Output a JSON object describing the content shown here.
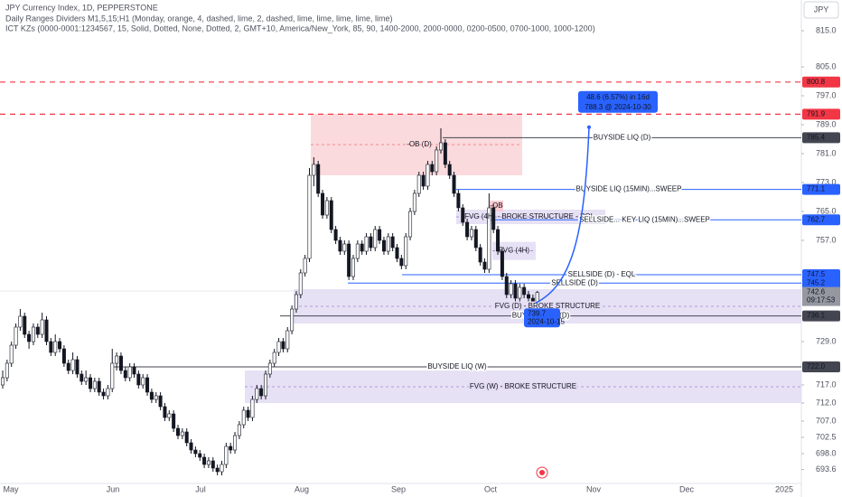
{
  "header": {
    "lines": [
      "JPY Currency Index, 1D, PEPPERSTONE",
      "Daily Ranges Dividers M1,5,15;H1 (Monday, orange, 4, dashed, lime, 2, dashed, lime, lime, lime, lime, lime)",
      "ICT KZs (0000-0001:1234567, 15, Solid, Dotted, None, Dotted, 2, GMT+10, America/New_York, 85, 90, 1400-2000, 2000-0000, 0200-0500, 0700-1000, 1000-1200)"
    ],
    "currency": "JPY"
  },
  "chart_data": {
    "type": "candlestick",
    "colors": {
      "up": "#ffffff",
      "down": "#131722",
      "wick": "#131722"
    },
    "ylim": [
      692,
      818
    ],
    "yticks": [
      {
        "value": 815,
        "label": "815.0"
      },
      {
        "value": 805,
        "label": "805.0"
      },
      {
        "value": 797,
        "label": "797.0"
      },
      {
        "value": 789,
        "label": "789.0"
      },
      {
        "value": 781,
        "label": "781.0"
      },
      {
        "value": 773,
        "label": "773.0"
      },
      {
        "value": 765,
        "label": "765.0"
      },
      {
        "value": 757,
        "label": "757.0"
      },
      {
        "value": 729,
        "label": "729.0"
      },
      {
        "value": 717,
        "label": "717.0"
      },
      {
        "value": 712,
        "label": "712.0"
      },
      {
        "value": 707,
        "label": "707.0"
      },
      702.5,
      {
        "value": 698,
        "label": "698.0"
      },
      693.6
    ],
    "xticks": [
      "May",
      "Jun",
      "Jul",
      "Aug",
      "Sep",
      "Oct",
      "Nov",
      "Dec",
      "2025"
    ],
    "ohlc": [
      [
        717,
        721,
        716,
        719
      ],
      [
        719,
        724,
        718,
        723
      ],
      [
        723,
        729,
        722,
        728
      ],
      [
        728,
        734,
        727,
        733
      ],
      [
        733,
        738,
        732,
        736
      ],
      [
        736,
        737,
        730,
        731
      ],
      [
        731,
        732,
        727,
        729
      ],
      [
        729,
        734,
        728,
        733
      ],
      [
        733,
        734,
        730,
        731
      ],
      [
        731,
        737,
        730,
        735
      ],
      [
        735,
        736,
        728,
        729
      ],
      [
        729,
        730,
        725,
        726
      ],
      [
        726,
        731,
        725,
        729
      ],
      [
        729,
        730,
        726,
        727
      ],
      [
        727,
        728,
        722,
        723
      ],
      [
        723,
        724,
        720,
        721
      ],
      [
        721,
        726,
        720,
        724
      ],
      [
        724,
        725,
        719,
        720
      ],
      [
        720,
        721,
        717,
        718
      ],
      [
        718,
        721,
        717,
        719
      ],
      [
        719,
        720,
        715,
        716
      ],
      [
        716,
        719,
        715,
        718
      ],
      [
        718,
        719,
        714,
        715
      ],
      [
        715,
        716,
        713,
        714
      ],
      [
        714,
        717,
        713,
        716
      ],
      [
        716,
        727,
        715,
        723
      ],
      [
        723,
        726,
        721,
        725
      ],
      [
        725,
        726,
        720,
        721
      ],
      [
        721,
        722,
        718,
        719
      ],
      [
        719,
        723,
        718,
        722
      ],
      [
        722,
        723,
        719,
        720
      ],
      [
        720,
        721,
        716,
        717
      ],
      [
        717,
        720,
        716,
        719
      ],
      [
        719,
        720,
        714,
        715
      ],
      [
        715,
        716,
        712,
        713
      ],
      [
        713,
        715,
        712,
        714
      ],
      [
        714,
        715,
        710,
        711
      ],
      [
        711,
        712,
        707,
        708
      ],
      [
        708,
        710,
        707,
        709
      ],
      [
        709,
        710,
        704,
        705
      ],
      [
        705,
        706,
        702,
        703
      ],
      [
        703,
        705,
        702,
        704
      ],
      [
        704,
        705,
        700,
        701
      ],
      [
        701,
        702,
        698,
        699
      ],
      [
        699,
        700,
        697,
        698
      ],
      [
        698,
        699,
        696,
        697
      ],
      [
        697,
        698,
        694,
        695
      ],
      [
        695,
        697,
        694,
        696
      ],
      [
        696,
        697,
        693,
        694
      ],
      [
        694,
        695,
        692,
        693
      ],
      [
        693,
        696,
        692,
        695
      ],
      [
        695,
        701,
        694,
        700
      ],
      [
        700,
        701,
        698,
        699
      ],
      [
        699,
        704,
        698,
        703
      ],
      [
        703,
        707,
        702,
        706
      ],
      [
        706,
        711,
        705,
        710
      ],
      [
        710,
        711,
        707,
        708
      ],
      [
        708,
        714,
        707,
        713
      ],
      [
        713,
        717,
        712,
        716
      ],
      [
        716,
        717,
        713,
        714
      ],
      [
        714,
        721,
        713,
        720
      ],
      [
        720,
        724,
        719,
        723
      ],
      [
        723,
        727,
        722,
        726
      ],
      [
        726,
        730,
        725,
        729
      ],
      [
        729,
        730,
        726,
        727
      ],
      [
        727,
        733,
        726,
        732
      ],
      [
        732,
        739,
        731,
        738
      ],
      [
        738,
        743,
        737,
        742
      ],
      [
        742,
        749,
        741,
        748
      ],
      [
        748,
        753,
        747,
        752
      ],
      [
        752,
        777,
        751,
        775
      ],
      [
        775,
        780,
        772,
        778
      ],
      [
        778,
        779,
        769,
        770
      ],
      [
        770,
        771,
        763,
        764
      ],
      [
        764,
        769,
        763,
        768
      ],
      [
        768,
        769,
        759,
        760
      ],
      [
        760,
        761,
        756,
        757
      ],
      [
        757,
        758,
        753,
        754
      ],
      [
        754,
        757,
        753,
        756
      ],
      [
        756,
        757,
        746,
        747
      ],
      [
        747,
        753,
        746,
        752
      ],
      [
        752,
        757,
        751,
        756
      ],
      [
        756,
        757,
        753,
        754
      ],
      [
        754,
        759,
        753,
        758
      ],
      [
        758,
        759,
        754,
        755
      ],
      [
        755,
        761,
        754,
        760
      ],
      [
        760,
        761,
        756,
        757
      ],
      [
        757,
        758,
        753,
        754
      ],
      [
        754,
        759,
        753,
        758
      ],
      [
        758,
        759,
        754,
        755
      ],
      [
        755,
        756,
        751,
        752
      ],
      [
        752,
        753,
        749,
        750
      ],
      [
        750,
        759,
        749,
        758
      ],
      [
        758,
        766,
        757,
        765
      ],
      [
        765,
        771,
        764,
        770
      ],
      [
        770,
        776,
        769,
        775
      ],
      [
        775,
        776,
        771,
        772
      ],
      [
        772,
        779,
        771,
        778
      ],
      [
        778,
        779,
        775,
        776
      ],
      [
        776,
        783,
        775,
        782
      ],
      [
        782,
        788,
        781,
        784
      ],
      [
        784,
        785,
        777,
        778
      ],
      [
        778,
        779,
        774,
        775
      ],
      [
        775,
        776,
        769,
        770
      ],
      [
        770,
        771,
        765,
        766
      ],
      [
        766,
        767,
        761,
        762
      ],
      [
        762,
        763,
        757,
        758
      ],
      [
        758,
        761,
        757,
        760
      ],
      [
        760,
        761,
        754,
        755
      ],
      [
        755,
        756,
        750,
        751
      ],
      [
        751,
        752,
        748,
        749
      ],
      [
        749,
        770,
        748,
        766
      ],
      [
        766,
        767,
        759,
        760
      ],
      [
        760,
        761,
        753,
        754
      ],
      [
        754,
        755,
        746,
        747
      ],
      [
        747,
        748,
        741,
        742
      ],
      [
        742,
        746,
        741,
        745
      ],
      [
        745,
        746,
        740,
        741
      ],
      [
        741,
        745,
        740,
        744
      ],
      [
        744,
        745,
        741,
        742
      ],
      [
        742,
        743,
        740,
        741
      ],
      [
        741,
        742,
        739.7,
        740
      ],
      [
        740,
        743,
        739.7,
        742.6
      ]
    ],
    "levels": [
      {
        "value": 800.8,
        "color": "#f23645",
        "dashed": true
      },
      {
        "value": 791.9,
        "color": "#f23645",
        "dashed": true
      },
      {
        "value": 785.4,
        "label": "BUYSIDE LIQ (D)",
        "color": "#434651"
      },
      {
        "value": 771.1,
        "label": "BUYSIDE LIQ (15MIN)...SWEEP",
        "color": "#2962ff"
      },
      {
        "value": 762.7,
        "label": "SELLSIDE... KEY LIQ (15MIN)...SWEEP",
        "color": "#2962ff"
      },
      {
        "value": 747.5,
        "label": "SELLSIDE (D) - EQL",
        "color": "#2962ff"
      },
      {
        "value": 745.2,
        "label": "SELLSIDE (D)",
        "color": "#2962ff"
      },
      {
        "value": 736.1,
        "label": "BUYSIDE LIQ (D)",
        "color": "#434651"
      },
      {
        "value": 722,
        "value_label": "722.0",
        "label": "BUYSIDE LIQ (W)",
        "color": "#434651"
      }
    ],
    "zones": [
      {
        "label": "-OB  (D)",
        "top": 792,
        "bottom": 775,
        "color": "#f9d3d7",
        "text_color": "#f23645"
      },
      {
        "label": "FVG (4H) - BROKE STRUCTURE - POI",
        "top": 765.5,
        "bottom": 761.5,
        "color": "#e3dcf3",
        "text_color": "#7e57c2"
      },
      {
        "label": "-OB",
        "top": 768,
        "bottom": 765,
        "color": "#f9c7cc",
        "text_color": "#f23645"
      },
      {
        "label": "FVG (4H)",
        "top": 756.6,
        "bottom": 751.6,
        "color": "#e3dcf3",
        "text_color": "#7e57c2"
      },
      {
        "label": "FVG (D) - BROKE STRUCTURE",
        "top": 743.5,
        "bottom": 734,
        "color": "#e3dcf3",
        "text_color": "#7e57c2"
      },
      {
        "label": "FVG (W) - BROKE STRUCTURE",
        "top": 721,
        "bottom": 712,
        "color": "#e3dcf3",
        "text_color": "#7e57c2"
      }
    ],
    "last_price": {
      "value": 742.6,
      "countdown": "09:17:53"
    },
    "projection": {
      "start_value": 739.7,
      "start_date": "2024-10-15",
      "end_value": 788.3,
      "change_label": "48.6 (6.57%) in 16d",
      "end_label": "788.3 @ 2024-10-30",
      "color": "#2962ff"
    }
  }
}
